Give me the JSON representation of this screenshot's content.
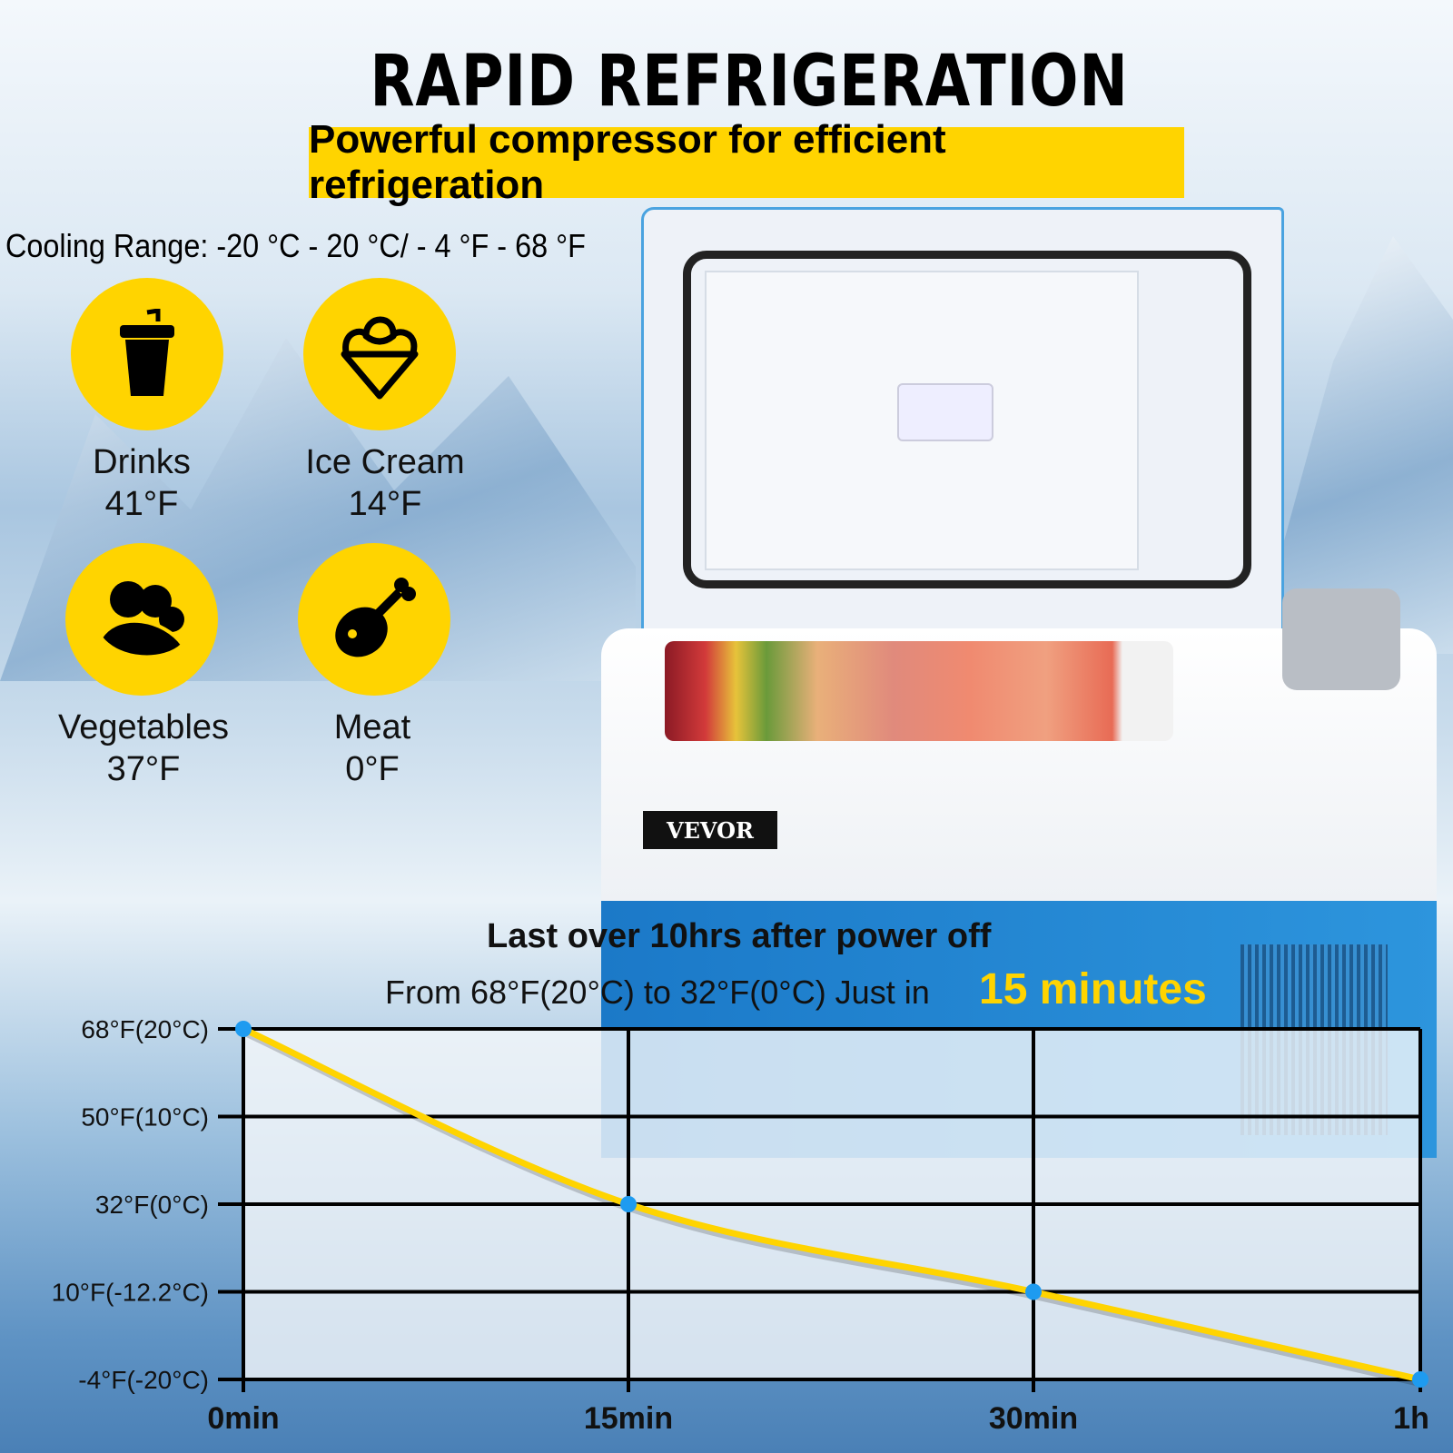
{
  "header": {
    "title": "RAPID REFRIGERATION",
    "subtitle": "Powerful compressor for efficient refrigeration",
    "cooling_range": "Cooling Range: -20 °C - 20 °C/ - 4 °F - 68 °F"
  },
  "categories": [
    {
      "name": "Drinks",
      "temp": "41°F",
      "icon": "drink-cup-icon"
    },
    {
      "name": "Ice Cream",
      "temp": "14°F",
      "icon": "ice-cream-icon"
    },
    {
      "name": "Vegetables",
      "temp": "37°F",
      "icon": "vegetables-icon"
    },
    {
      "name": "Meat",
      "temp": "0°F",
      "icon": "meat-drumstick-icon"
    }
  ],
  "product": {
    "brand": "VEVOR"
  },
  "info": {
    "line1": "Last over 10hrs after power off",
    "line2": "From 68°F(20°C) to 32°F(0°C) Just in",
    "highlight": "15 minutes"
  },
  "colors": {
    "accent": "#ffd400",
    "point": "#1e9bf0",
    "product_blue": "#1b79c8"
  },
  "chart_data": {
    "type": "line",
    "title": "",
    "xlabel": "",
    "ylabel": "",
    "x_categories": [
      "0min",
      "15min",
      "30min",
      "1h"
    ],
    "y_ticks": [
      {
        "value": 68,
        "label": "68°F(20°C)"
      },
      {
        "value": 50,
        "label": "50°F(10°C)"
      },
      {
        "value": 32,
        "label": "32°F(0°C)"
      },
      {
        "value": 10,
        "label": "10°F(-12.2°C)"
      },
      {
        "value": -4,
        "label": "-4°F(-20°C)"
      }
    ],
    "series": [
      {
        "x": [
          "0min",
          "15min",
          "30min",
          "1h"
        ],
        "y": [
          68,
          32,
          10,
          -4
        ],
        "color": "#ffd400"
      }
    ],
    "grid": true,
    "legend": "none"
  }
}
